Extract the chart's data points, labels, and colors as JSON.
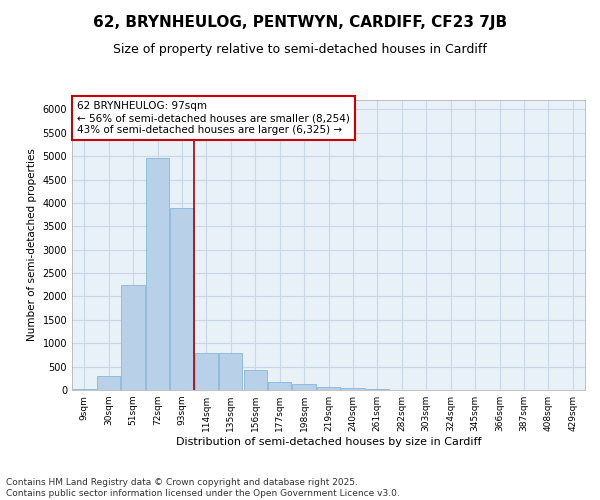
{
  "title1": "62, BRYNHEULOG, PENTWYN, CARDIFF, CF23 7JB",
  "title2": "Size of property relative to semi-detached houses in Cardiff",
  "xlabel": "Distribution of semi-detached houses by size in Cardiff",
  "ylabel": "Number of semi-detached properties",
  "categories": [
    "9sqm",
    "30sqm",
    "51sqm",
    "72sqm",
    "93sqm",
    "114sqm",
    "135sqm",
    "156sqm",
    "177sqm",
    "198sqm",
    "219sqm",
    "240sqm",
    "261sqm",
    "282sqm",
    "303sqm",
    "324sqm",
    "345sqm",
    "366sqm",
    "387sqm",
    "408sqm",
    "429sqm"
  ],
  "values": [
    25,
    310,
    2250,
    4950,
    3900,
    800,
    800,
    420,
    175,
    120,
    65,
    45,
    20,
    10,
    10,
    5,
    3,
    2,
    1,
    0,
    0
  ],
  "bar_color": "#b8d0e8",
  "bar_edge_color": "#7aafd4",
  "vline_color": "#aa0000",
  "annotation_text": "62 BRYNHEULOG: 97sqm\n← 56% of semi-detached houses are smaller (8,254)\n43% of semi-detached houses are larger (6,325) →",
  "annotation_box_color": "#ffffff",
  "annotation_box_edge": "#cc0000",
  "ylim": [
    0,
    6200
  ],
  "yticks": [
    0,
    500,
    1000,
    1500,
    2000,
    2500,
    3000,
    3500,
    4000,
    4500,
    5000,
    5500,
    6000
  ],
  "grid_color": "#c8d8e8",
  "background_color": "#e8f0f8",
  "footer": "Contains HM Land Registry data © Crown copyright and database right 2025.\nContains public sector information licensed under the Open Government Licence v3.0.",
  "title_fontsize": 11,
  "subtitle_fontsize": 9,
  "annotation_fontsize": 7.5,
  "footer_fontsize": 6.5,
  "vline_index": 4
}
